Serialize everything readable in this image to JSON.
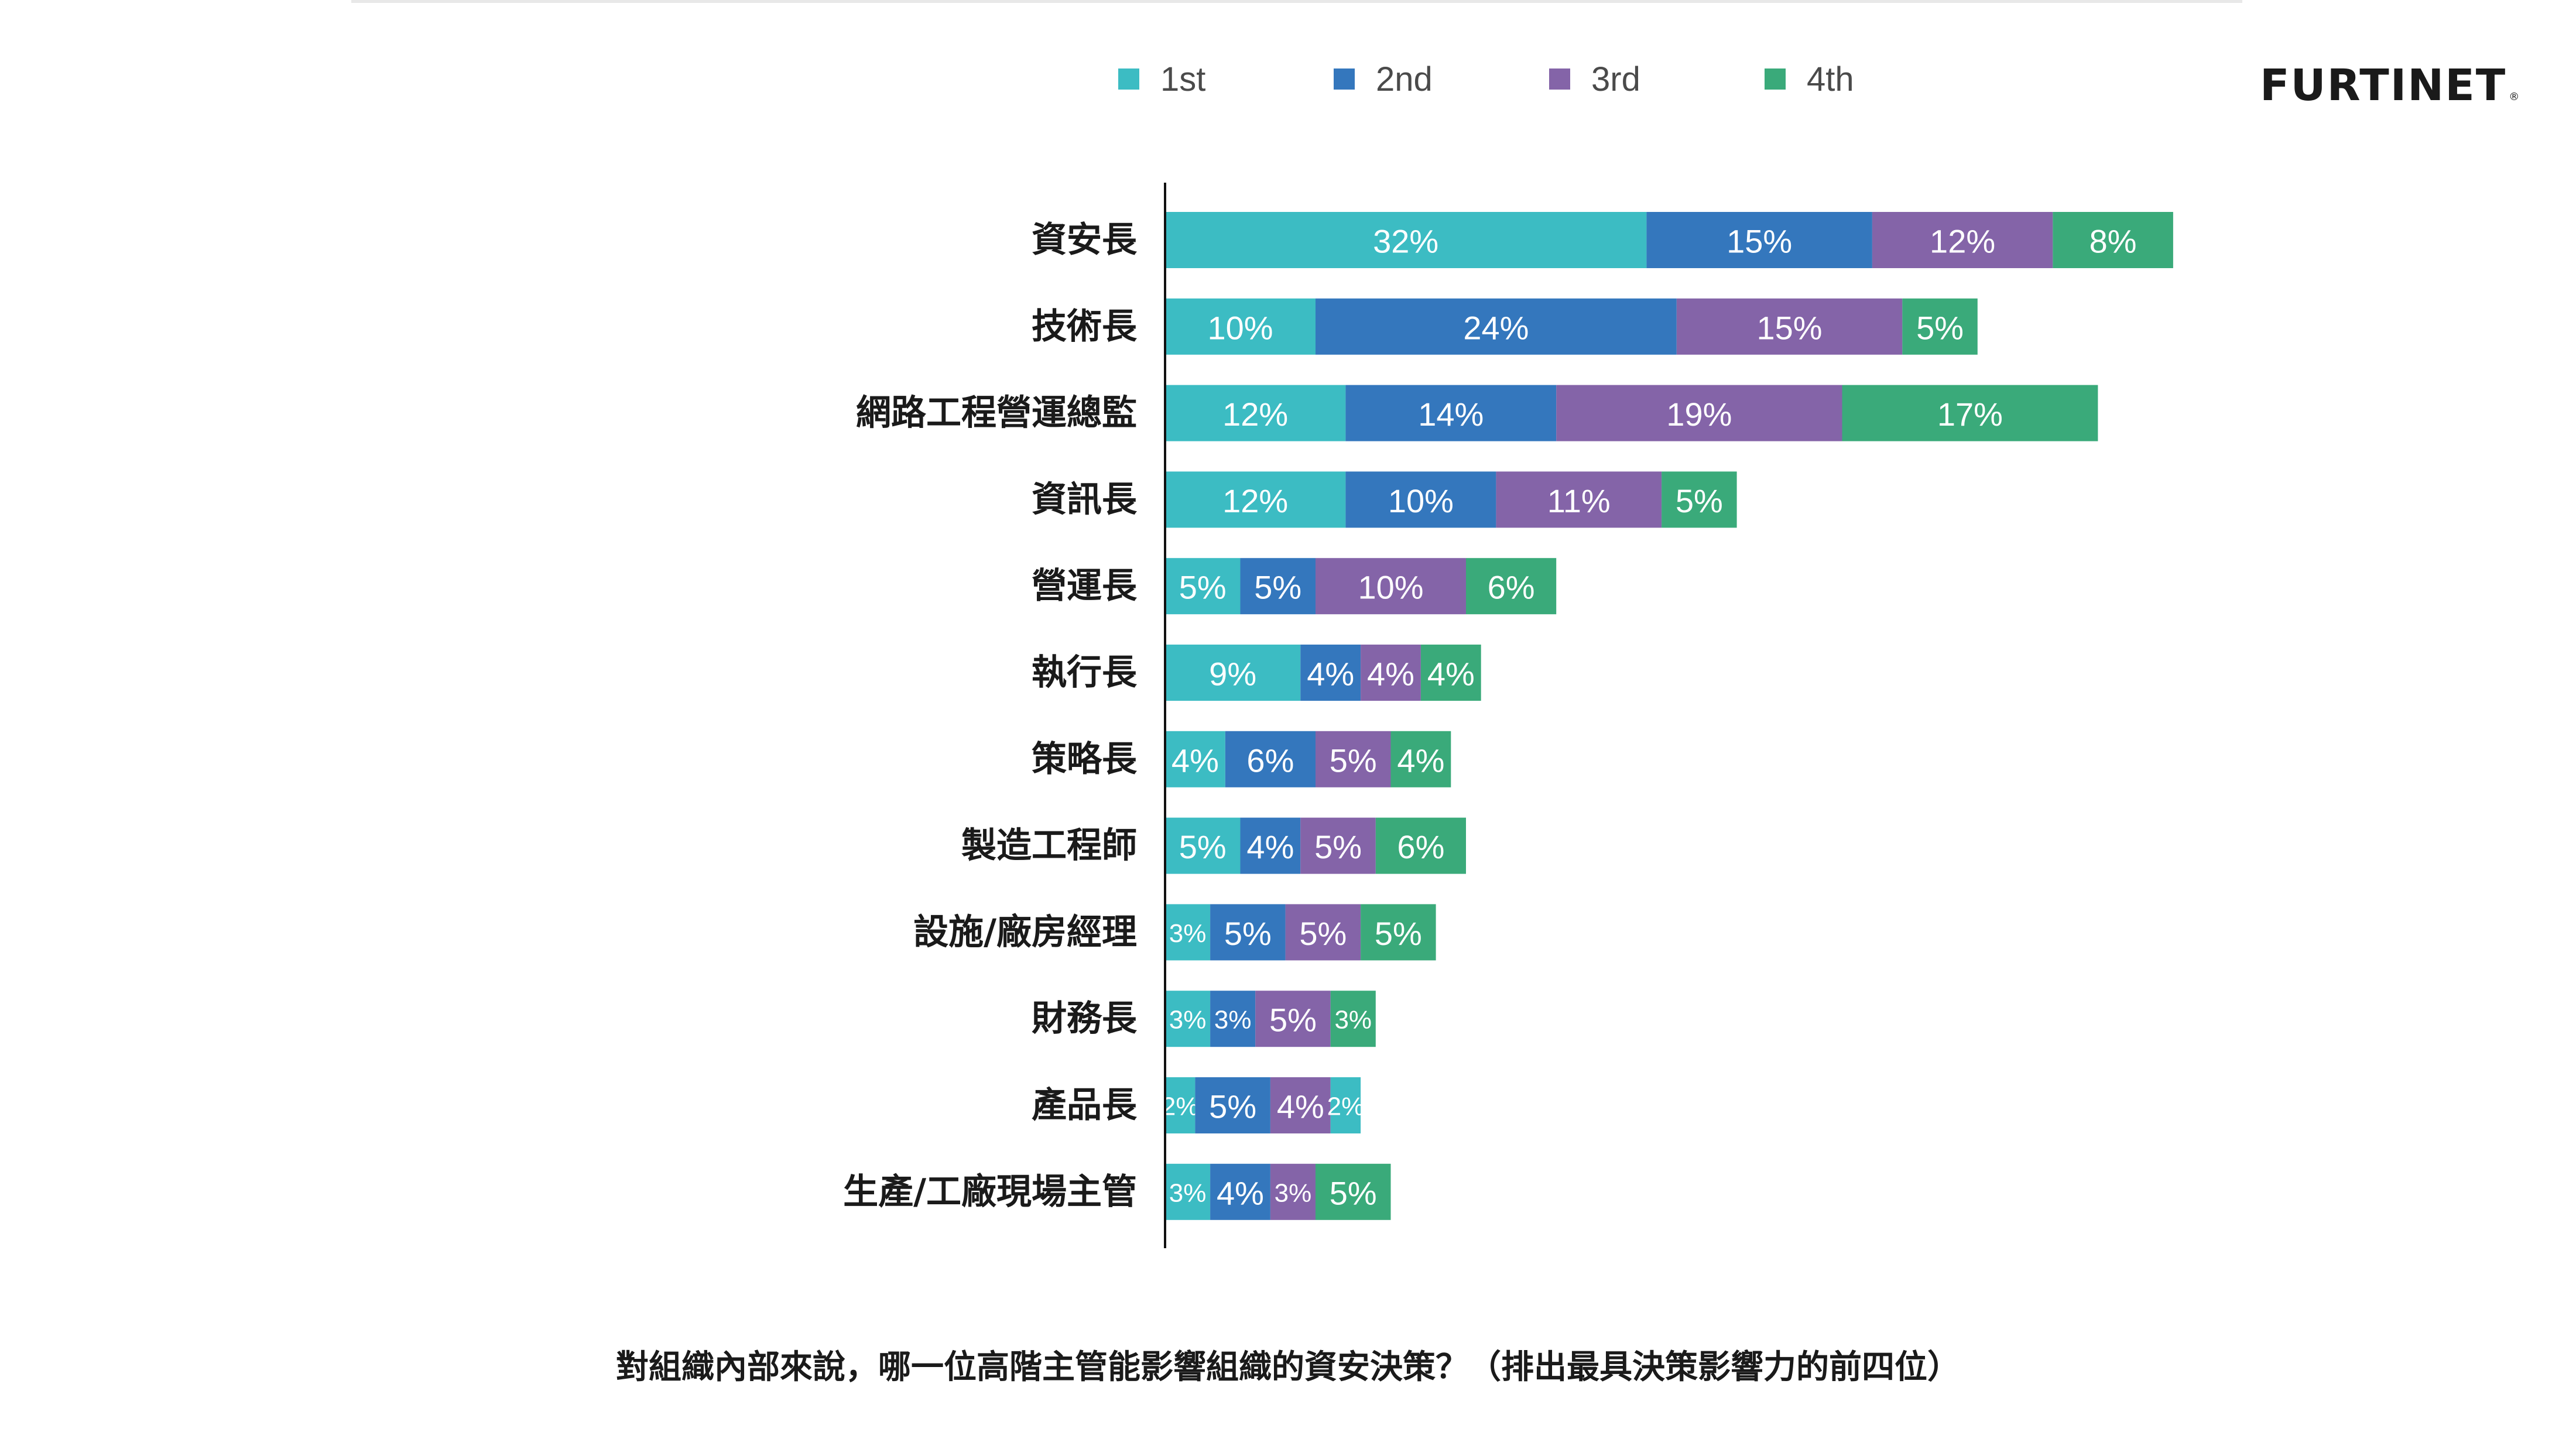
{
  "brand": {
    "logo_text": "FURTINET",
    "logo_mark": "®"
  },
  "colors": {
    "1st": "#3cbcc3",
    "2nd": "#3477bd",
    "3rd": "#8464a8",
    "4th": "#3aaa7a",
    "axis": "#111111"
  },
  "chart_data": {
    "type": "bar",
    "orientation": "horizontal",
    "stacked": true,
    "title": "",
    "caption": "對組織內部來說，哪一位高階主管能影響組織的資安決策？（排出最具決策影響力的前四位）",
    "unit": "%",
    "legend_position": "top",
    "grid": false,
    "xlim": [
      0,
      100
    ],
    "categories": [
      "資安長",
      "技術長",
      "網路工程營運總監",
      "資訊長",
      "營運長",
      "執行長",
      "策略長",
      "製造工程師",
      "設施/廠房經理",
      "財務長",
      "產品長",
      "生產/工廠現場主管"
    ],
    "series": [
      {
        "name": "1st",
        "color": "#3cbcc3",
        "values": [
          32,
          10,
          12,
          12,
          5,
          9,
          4,
          5,
          3,
          3,
          2,
          3
        ]
      },
      {
        "name": "2nd",
        "color": "#3477bd",
        "values": [
          15,
          24,
          14,
          10,
          5,
          4,
          6,
          4,
          5,
          3,
          5,
          4
        ]
      },
      {
        "name": "3rd",
        "color": "#8464a8",
        "values": [
          12,
          15,
          19,
          11,
          10,
          4,
          5,
          5,
          5,
          5,
          4,
          3
        ]
      },
      {
        "name": "4th",
        "color": "#3aaa7a",
        "values": [
          8,
          5,
          17,
          5,
          6,
          4,
          4,
          6,
          5,
          3,
          2,
          5
        ]
      }
    ],
    "segment_labels": [
      [
        "32%",
        "15%",
        "12%",
        "8%"
      ],
      [
        "10%",
        "24%",
        "15%",
        "5%"
      ],
      [
        "12%",
        "14%",
        "19%",
        "17%"
      ],
      [
        "12%",
        "10%",
        "11%",
        "5%"
      ],
      [
        "5%",
        "5%",
        "10%",
        "6%"
      ],
      [
        "9%",
        "4%",
        "4%",
        "4%"
      ],
      [
        "4%",
        "6%",
        "5%",
        "4%"
      ],
      [
        "5%",
        "4%",
        "5%",
        "6%"
      ],
      [
        "3%",
        "5%",
        "5%",
        "5%"
      ],
      [
        "3%",
        "3%",
        "5%",
        "3%"
      ],
      [
        "2%",
        "5%",
        "4%",
        "2%"
      ],
      [
        "3%",
        "4%",
        "3%",
        "5%"
      ]
    ],
    "segment_colors_override": {
      "10": {
        "3": "#3cbcc3"
      }
    }
  }
}
